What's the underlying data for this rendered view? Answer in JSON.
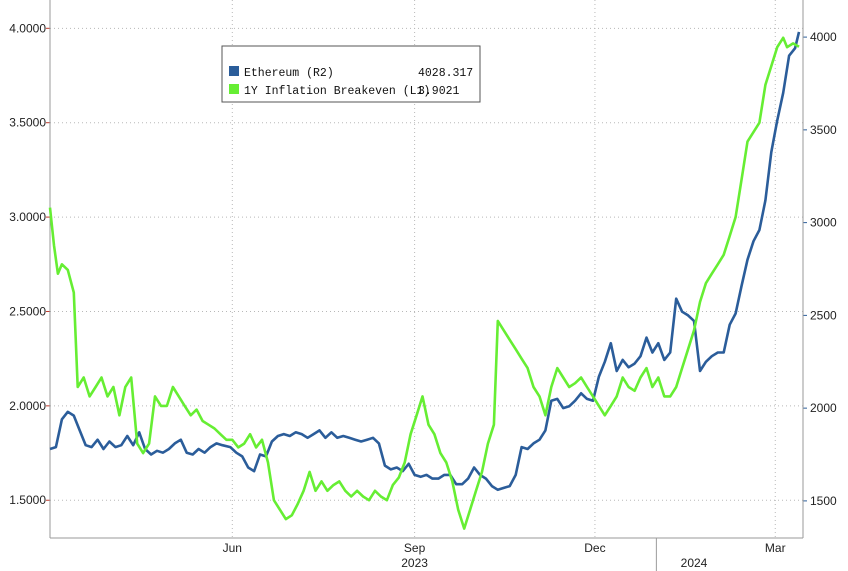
{
  "chart_data": {
    "type": "line",
    "x_axis": {
      "ticks": [
        {
          "label": "Jun",
          "date": "2023-06-01"
        },
        {
          "label": "Sep",
          "date": "2023-09-01"
        },
        {
          "label": "Dec",
          "date": "2023-12-01"
        },
        {
          "label": "Mar",
          "date": "2024-03-01"
        }
      ],
      "year_labels": [
        {
          "label": "2023",
          "date": "2023-09-01"
        },
        {
          "label": "2024",
          "date": "2024-01-20"
        }
      ],
      "range": [
        "2023-03-01",
        "2024-03-15"
      ]
    },
    "y_left": {
      "range": [
        1.3,
        4.15
      ],
      "ticks": [
        "4.0000",
        "3.5000",
        "3.0000",
        "2.5000",
        "2.0000",
        "1.5000"
      ],
      "tick_values": [
        4.0,
        3.5,
        3.0,
        2.5,
        2.0,
        1.5
      ]
    },
    "y_right": {
      "range": [
        1300,
        4200
      ],
      "ticks": [
        "4000",
        "3500",
        "3000",
        "2500",
        "2000",
        "1500"
      ],
      "tick_values": [
        4000,
        3500,
        3000,
        2500,
        2000,
        1500
      ]
    },
    "grid": true,
    "legend": {
      "placement": "top-left",
      "entries": [
        {
          "label": "Ethereum (R2)",
          "value": "4028.317",
          "color": "#2b5d9a"
        },
        {
          "label": "1Y Inflation Breakeven (L1)",
          "value": "3.9021",
          "color": "#66ee33"
        }
      ]
    },
    "series": [
      {
        "name": "Ethereum (R2)",
        "axis": "right",
        "color": "#2b5d9a",
        "points": [
          [
            "2023-03-01",
            1780
          ],
          [
            "2023-03-04",
            1790
          ],
          [
            "2023-03-07",
            1940
          ],
          [
            "2023-03-10",
            1980
          ],
          [
            "2023-03-13",
            1960
          ],
          [
            "2023-03-16",
            1880
          ],
          [
            "2023-03-19",
            1800
          ],
          [
            "2023-03-22",
            1790
          ],
          [
            "2023-03-25",
            1830
          ],
          [
            "2023-03-28",
            1780
          ],
          [
            "2023-03-31",
            1820
          ],
          [
            "2023-04-03",
            1790
          ],
          [
            "2023-04-06",
            1800
          ],
          [
            "2023-04-09",
            1850
          ],
          [
            "2023-04-12",
            1800
          ],
          [
            "2023-04-15",
            1870
          ],
          [
            "2023-04-18",
            1780
          ],
          [
            "2023-04-21",
            1750
          ],
          [
            "2023-04-24",
            1770
          ],
          [
            "2023-04-27",
            1760
          ],
          [
            "2023-04-30",
            1780
          ],
          [
            "2023-05-03",
            1810
          ],
          [
            "2023-05-06",
            1830
          ],
          [
            "2023-05-09",
            1760
          ],
          [
            "2023-05-12",
            1750
          ],
          [
            "2023-05-15",
            1780
          ],
          [
            "2023-05-18",
            1760
          ],
          [
            "2023-05-21",
            1790
          ],
          [
            "2023-05-24",
            1810
          ],
          [
            "2023-05-27",
            1800
          ],
          [
            "2023-05-31",
            1790
          ],
          [
            "2023-06-03",
            1760
          ],
          [
            "2023-06-06",
            1740
          ],
          [
            "2023-06-09",
            1680
          ],
          [
            "2023-06-12",
            1660
          ],
          [
            "2023-06-15",
            1750
          ],
          [
            "2023-06-18",
            1740
          ],
          [
            "2023-06-21",
            1820
          ],
          [
            "2023-06-24",
            1850
          ],
          [
            "2023-06-27",
            1860
          ],
          [
            "2023-06-30",
            1850
          ],
          [
            "2023-07-03",
            1870
          ],
          [
            "2023-07-06",
            1860
          ],
          [
            "2023-07-09",
            1840
          ],
          [
            "2023-07-12",
            1860
          ],
          [
            "2023-07-15",
            1880
          ],
          [
            "2023-07-18",
            1840
          ],
          [
            "2023-07-21",
            1870
          ],
          [
            "2023-07-24",
            1840
          ],
          [
            "2023-07-27",
            1850
          ],
          [
            "2023-07-30",
            1840
          ],
          [
            "2023-08-02",
            1830
          ],
          [
            "2023-08-05",
            1820
          ],
          [
            "2023-08-08",
            1830
          ],
          [
            "2023-08-11",
            1840
          ],
          [
            "2023-08-14",
            1810
          ],
          [
            "2023-08-17",
            1690
          ],
          [
            "2023-08-20",
            1670
          ],
          [
            "2023-08-23",
            1680
          ],
          [
            "2023-08-26",
            1660
          ],
          [
            "2023-08-29",
            1700
          ],
          [
            "2023-09-01",
            1640
          ],
          [
            "2023-09-04",
            1630
          ],
          [
            "2023-09-07",
            1640
          ],
          [
            "2023-09-10",
            1620
          ],
          [
            "2023-09-13",
            1620
          ],
          [
            "2023-09-16",
            1640
          ],
          [
            "2023-09-19",
            1640
          ],
          [
            "2023-09-22",
            1590
          ],
          [
            "2023-09-25",
            1590
          ],
          [
            "2023-09-28",
            1620
          ],
          [
            "2023-10-01",
            1680
          ],
          [
            "2023-10-04",
            1640
          ],
          [
            "2023-10-07",
            1620
          ],
          [
            "2023-10-10",
            1580
          ],
          [
            "2023-10-13",
            1560
          ],
          [
            "2023-10-16",
            1570
          ],
          [
            "2023-10-19",
            1580
          ],
          [
            "2023-10-22",
            1640
          ],
          [
            "2023-10-25",
            1790
          ],
          [
            "2023-10-28",
            1780
          ],
          [
            "2023-10-31",
            1810
          ],
          [
            "2023-11-03",
            1830
          ],
          [
            "2023-11-06",
            1880
          ],
          [
            "2023-11-09",
            2040
          ],
          [
            "2023-11-12",
            2050
          ],
          [
            "2023-11-15",
            2000
          ],
          [
            "2023-11-18",
            2010
          ],
          [
            "2023-11-21",
            2040
          ],
          [
            "2023-11-24",
            2080
          ],
          [
            "2023-11-27",
            2050
          ],
          [
            "2023-11-30",
            2040
          ],
          [
            "2023-12-03",
            2170
          ],
          [
            "2023-12-06",
            2250
          ],
          [
            "2023-12-09",
            2350
          ],
          [
            "2023-12-12",
            2200
          ],
          [
            "2023-12-15",
            2260
          ],
          [
            "2023-12-18",
            2220
          ],
          [
            "2023-12-21",
            2240
          ],
          [
            "2023-12-24",
            2280
          ],
          [
            "2023-12-27",
            2380
          ],
          [
            "2023-12-30",
            2300
          ],
          [
            "2024-01-02",
            2350
          ],
          [
            "2024-01-05",
            2260
          ],
          [
            "2024-01-08",
            2300
          ],
          [
            "2024-01-11",
            2590
          ],
          [
            "2024-01-14",
            2520
          ],
          [
            "2024-01-17",
            2500
          ],
          [
            "2024-01-20",
            2470
          ],
          [
            "2024-01-23",
            2200
          ],
          [
            "2024-01-26",
            2250
          ],
          [
            "2024-01-29",
            2280
          ],
          [
            "2024-02-01",
            2300
          ],
          [
            "2024-02-04",
            2300
          ],
          [
            "2024-02-07",
            2450
          ],
          [
            "2024-02-10",
            2510
          ],
          [
            "2024-02-13",
            2660
          ],
          [
            "2024-02-16",
            2800
          ],
          [
            "2024-02-19",
            2900
          ],
          [
            "2024-02-22",
            2960
          ],
          [
            "2024-02-25",
            3120
          ],
          [
            "2024-02-28",
            3380
          ],
          [
            "2024-03-02",
            3550
          ],
          [
            "2024-03-05",
            3700
          ],
          [
            "2024-03-08",
            3900
          ],
          [
            "2024-03-11",
            3940
          ],
          [
            "2024-03-13",
            4028.317
          ]
        ]
      },
      {
        "name": "1Y Inflation Breakeven (L1)",
        "axis": "left",
        "color": "#66ee33",
        "points": [
          [
            "2023-03-01",
            3.05
          ],
          [
            "2023-03-03",
            2.85
          ],
          [
            "2023-03-05",
            2.7
          ],
          [
            "2023-03-07",
            2.75
          ],
          [
            "2023-03-10",
            2.72
          ],
          [
            "2023-03-13",
            2.6
          ],
          [
            "2023-03-15",
            2.1
          ],
          [
            "2023-03-18",
            2.15
          ],
          [
            "2023-03-21",
            2.05
          ],
          [
            "2023-03-24",
            2.1
          ],
          [
            "2023-03-27",
            2.15
          ],
          [
            "2023-03-30",
            2.05
          ],
          [
            "2023-04-02",
            2.1
          ],
          [
            "2023-04-05",
            1.95
          ],
          [
            "2023-04-08",
            2.1
          ],
          [
            "2023-04-11",
            2.15
          ],
          [
            "2023-04-14",
            1.8
          ],
          [
            "2023-04-17",
            1.75
          ],
          [
            "2023-04-20",
            1.8
          ],
          [
            "2023-04-23",
            2.05
          ],
          [
            "2023-04-26",
            2.0
          ],
          [
            "2023-04-29",
            2.0
          ],
          [
            "2023-05-02",
            2.1
          ],
          [
            "2023-05-05",
            2.05
          ],
          [
            "2023-05-08",
            2.0
          ],
          [
            "2023-05-11",
            1.95
          ],
          [
            "2023-05-14",
            1.98
          ],
          [
            "2023-05-17",
            1.92
          ],
          [
            "2023-05-20",
            1.9
          ],
          [
            "2023-05-23",
            1.88
          ],
          [
            "2023-05-26",
            1.85
          ],
          [
            "2023-05-29",
            1.82
          ],
          [
            "2023-06-01",
            1.82
          ],
          [
            "2023-06-04",
            1.78
          ],
          [
            "2023-06-07",
            1.8
          ],
          [
            "2023-06-10",
            1.85
          ],
          [
            "2023-06-13",
            1.78
          ],
          [
            "2023-06-16",
            1.82
          ],
          [
            "2023-06-19",
            1.7
          ],
          [
            "2023-06-22",
            1.5
          ],
          [
            "2023-06-25",
            1.45
          ],
          [
            "2023-06-28",
            1.4
          ],
          [
            "2023-07-01",
            1.42
          ],
          [
            "2023-07-04",
            1.48
          ],
          [
            "2023-07-07",
            1.55
          ],
          [
            "2023-07-10",
            1.65
          ],
          [
            "2023-07-13",
            1.55
          ],
          [
            "2023-07-16",
            1.6
          ],
          [
            "2023-07-19",
            1.55
          ],
          [
            "2023-07-22",
            1.58
          ],
          [
            "2023-07-25",
            1.6
          ],
          [
            "2023-07-28",
            1.55
          ],
          [
            "2023-07-31",
            1.52
          ],
          [
            "2023-08-03",
            1.55
          ],
          [
            "2023-08-06",
            1.52
          ],
          [
            "2023-08-09",
            1.5
          ],
          [
            "2023-08-12",
            1.55
          ],
          [
            "2023-08-15",
            1.52
          ],
          [
            "2023-08-18",
            1.5
          ],
          [
            "2023-08-21",
            1.58
          ],
          [
            "2023-08-24",
            1.62
          ],
          [
            "2023-08-27",
            1.7
          ],
          [
            "2023-08-30",
            1.85
          ],
          [
            "2023-09-02",
            1.95
          ],
          [
            "2023-09-05",
            2.05
          ],
          [
            "2023-09-08",
            1.9
          ],
          [
            "2023-09-11",
            1.85
          ],
          [
            "2023-09-14",
            1.75
          ],
          [
            "2023-09-17",
            1.7
          ],
          [
            "2023-09-20",
            1.6
          ],
          [
            "2023-09-23",
            1.45
          ],
          [
            "2023-09-26",
            1.35
          ],
          [
            "2023-09-29",
            1.45
          ],
          [
            "2023-10-02",
            1.55
          ],
          [
            "2023-10-05",
            1.65
          ],
          [
            "2023-10-08",
            1.8
          ],
          [
            "2023-10-11",
            1.9
          ],
          [
            "2023-10-13",
            2.45
          ],
          [
            "2023-10-16",
            2.4
          ],
          [
            "2023-10-19",
            2.35
          ],
          [
            "2023-10-22",
            2.3
          ],
          [
            "2023-10-25",
            2.25
          ],
          [
            "2023-10-28",
            2.2
          ],
          [
            "2023-10-31",
            2.1
          ],
          [
            "2023-11-03",
            2.05
          ],
          [
            "2023-11-06",
            1.95
          ],
          [
            "2023-11-09",
            2.1
          ],
          [
            "2023-11-12",
            2.2
          ],
          [
            "2023-11-15",
            2.15
          ],
          [
            "2023-11-18",
            2.1
          ],
          [
            "2023-11-21",
            2.12
          ],
          [
            "2023-11-24",
            2.15
          ],
          [
            "2023-11-27",
            2.1
          ],
          [
            "2023-11-30",
            2.05
          ],
          [
            "2023-12-03",
            2.0
          ],
          [
            "2023-12-06",
            1.95
          ],
          [
            "2023-12-09",
            2.0
          ],
          [
            "2023-12-12",
            2.05
          ],
          [
            "2023-12-15",
            2.15
          ],
          [
            "2023-12-18",
            2.1
          ],
          [
            "2023-12-21",
            2.08
          ],
          [
            "2023-12-24",
            2.15
          ],
          [
            "2023-12-27",
            2.2
          ],
          [
            "2023-12-30",
            2.1
          ],
          [
            "2024-01-02",
            2.15
          ],
          [
            "2024-01-05",
            2.05
          ],
          [
            "2024-01-08",
            2.05
          ],
          [
            "2024-01-11",
            2.1
          ],
          [
            "2024-01-14",
            2.2
          ],
          [
            "2024-01-17",
            2.3
          ],
          [
            "2024-01-20",
            2.4
          ],
          [
            "2024-01-23",
            2.55
          ],
          [
            "2024-01-26",
            2.65
          ],
          [
            "2024-01-29",
            2.7
          ],
          [
            "2024-02-01",
            2.75
          ],
          [
            "2024-02-04",
            2.8
          ],
          [
            "2024-02-07",
            2.9
          ],
          [
            "2024-02-10",
            3.0
          ],
          [
            "2024-02-13",
            3.2
          ],
          [
            "2024-02-16",
            3.4
          ],
          [
            "2024-02-19",
            3.45
          ],
          [
            "2024-02-22",
            3.5
          ],
          [
            "2024-02-25",
            3.7
          ],
          [
            "2024-02-28",
            3.8
          ],
          [
            "2024-03-02",
            3.9
          ],
          [
            "2024-03-05",
            3.95
          ],
          [
            "2024-03-07",
            3.9
          ],
          [
            "2024-03-10",
            3.92
          ],
          [
            "2024-03-13",
            3.9021
          ]
        ]
      }
    ]
  }
}
